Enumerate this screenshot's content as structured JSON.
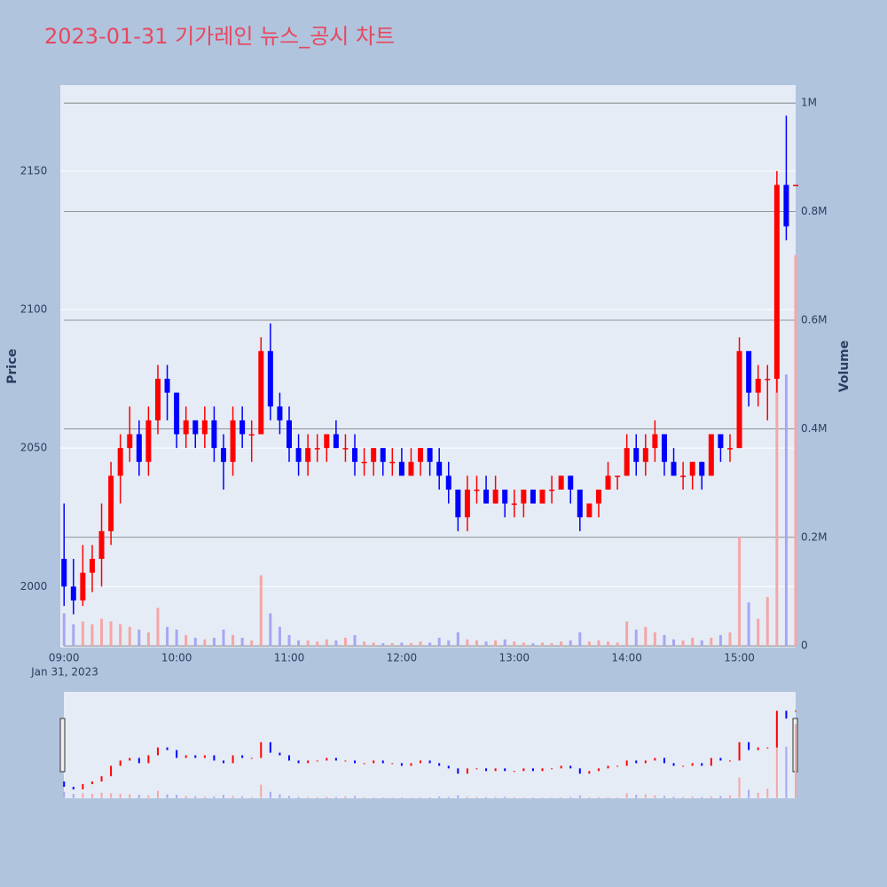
{
  "chart_data": {
    "type": "candlestick",
    "title": "2023-01-31 기가레인 뉴스_공시 차트",
    "y_label": "Price",
    "y2_label": "Volume",
    "x_date_label": "Jan 31, 2023",
    "increasing_color": "#ff0000",
    "decreasing_color": "#0000ff",
    "volume_increasing_color": "#f4a6a6",
    "volume_decreasing_color": "#a6a6f4",
    "x": [
      "09:00",
      "09:05",
      "09:10",
      "09:15",
      "09:20",
      "09:25",
      "09:30",
      "09:35",
      "09:40",
      "09:45",
      "09:50",
      "09:55",
      "10:00",
      "10:05",
      "10:10",
      "10:15",
      "10:20",
      "10:25",
      "10:30",
      "10:35",
      "10:40",
      "10:45",
      "10:50",
      "10:55",
      "11:00",
      "11:05",
      "11:10",
      "11:15",
      "11:20",
      "11:25",
      "11:30",
      "11:35",
      "11:40",
      "11:45",
      "11:50",
      "11:55",
      "12:00",
      "12:05",
      "12:10",
      "12:15",
      "12:20",
      "12:25",
      "12:30",
      "12:35",
      "12:40",
      "12:45",
      "12:50",
      "12:55",
      "13:00",
      "13:05",
      "13:10",
      "13:15",
      "13:20",
      "13:25",
      "13:30",
      "13:35",
      "13:40",
      "13:45",
      "13:50",
      "13:55",
      "14:00",
      "14:05",
      "14:10",
      "14:15",
      "14:20",
      "14:25",
      "14:30",
      "14:35",
      "14:40",
      "14:45",
      "14:50",
      "14:55",
      "15:00",
      "15:05",
      "15:10",
      "15:15",
      "15:20",
      "15:25",
      "15:30"
    ],
    "open": [
      2010,
      2000,
      1995,
      2005,
      2010,
      2020,
      2040,
      2050,
      2055,
      2045,
      2060,
      2075,
      2070,
      2055,
      2060,
      2055,
      2060,
      2050,
      2045,
      2060,
      2055,
      2055,
      2085,
      2065,
      2060,
      2050,
      2045,
      2050,
      2050,
      2055,
      2050,
      2050,
      2045,
      2045,
      2050,
      2045,
      2045,
      2040,
      2045,
      2050,
      2045,
      2040,
      2035,
      2025,
      2035,
      2035,
      2030,
      2035,
      2030,
      2030,
      2035,
      2030,
      2035,
      2035,
      2040,
      2035,
      2025,
      2030,
      2035,
      2040,
      2040,
      2050,
      2045,
      2050,
      2055,
      2045,
      2040,
      2040,
      2045,
      2040,
      2055,
      2050,
      2050,
      2085,
      2070,
      2075,
      2075,
      2145,
      2145
    ],
    "high": [
      2030,
      2010,
      2015,
      2015,
      2030,
      2045,
      2055,
      2065,
      2060,
      2065,
      2080,
      2080,
      2070,
      2065,
      2060,
      2065,
      2065,
      2055,
      2065,
      2065,
      2060,
      2090,
      2095,
      2070,
      2065,
      2055,
      2055,
      2055,
      2055,
      2060,
      2055,
      2055,
      2050,
      2050,
      2050,
      2050,
      2050,
      2050,
      2050,
      2050,
      2050,
      2045,
      2035,
      2040,
      2040,
      2040,
      2040,
      2035,
      2035,
      2035,
      2035,
      2035,
      2040,
      2040,
      2040,
      2035,
      2030,
      2035,
      2045,
      2040,
      2055,
      2055,
      2055,
      2060,
      2055,
      2050,
      2045,
      2045,
      2045,
      2055,
      2055,
      2055,
      2090,
      2085,
      2080,
      2080,
      2150,
      2170,
      2145
    ],
    "low": [
      1993,
      1990,
      1993,
      1998,
      2000,
      2015,
      2030,
      2045,
      2040,
      2040,
      2055,
      2060,
      2050,
      2050,
      2050,
      2050,
      2045,
      2035,
      2040,
      2050,
      2045,
      2055,
      2060,
      2055,
      2045,
      2040,
      2040,
      2045,
      2045,
      2050,
      2045,
      2040,
      2040,
      2040,
      2040,
      2040,
      2040,
      2040,
      2040,
      2040,
      2035,
      2030,
      2020,
      2020,
      2030,
      2030,
      2030,
      2025,
      2025,
      2025,
      2030,
      2030,
      2030,
      2035,
      2030,
      2020,
      2025,
      2025,
      2035,
      2035,
      2040,
      2040,
      2040,
      2045,
      2040,
      2040,
      2035,
      2035,
      2035,
      2040,
      2045,
      2045,
      2050,
      2065,
      2065,
      2060,
      2070,
      2125,
      2145
    ],
    "close": [
      2000,
      1995,
      2005,
      2010,
      2020,
      2040,
      2050,
      2055,
      2045,
      2060,
      2075,
      2070,
      2055,
      2060,
      2055,
      2060,
      2050,
      2045,
      2060,
      2055,
      2055,
      2085,
      2065,
      2060,
      2050,
      2045,
      2050,
      2050,
      2055,
      2050,
      2050,
      2045,
      2045,
      2050,
      2045,
      2045,
      2040,
      2045,
      2050,
      2045,
      2040,
      2035,
      2025,
      2035,
      2035,
      2030,
      2035,
      2030,
      2030,
      2035,
      2030,
      2035,
      2035,
      2040,
      2035,
      2025,
      2030,
      2035,
      2040,
      2040,
      2050,
      2045,
      2050,
      2055,
      2045,
      2040,
      2040,
      2045,
      2040,
      2055,
      2050,
      2050,
      2085,
      2070,
      2075,
      2075,
      2145,
      2130,
      2145
    ],
    "volume": [
      60000,
      40000,
      45000,
      40000,
      50000,
      45000,
      40000,
      35000,
      30000,
      25000,
      70000,
      35000,
      30000,
      20000,
      15000,
      12000,
      15000,
      30000,
      20000,
      15000,
      10000,
      130000,
      60000,
      35000,
      20000,
      10000,
      10000,
      8000,
      12000,
      10000,
      15000,
      20000,
      8000,
      6000,
      5000,
      5000,
      6000,
      5000,
      8000,
      6000,
      15000,
      10000,
      25000,
      12000,
      10000,
      8000,
      10000,
      12000,
      8000,
      6000,
      5000,
      6000,
      5000,
      8000,
      10000,
      25000,
      8000,
      10000,
      8000,
      6000,
      45000,
      30000,
      35000,
      25000,
      20000,
      12000,
      10000,
      15000,
      10000,
      15000,
      20000,
      25000,
      200000,
      80000,
      50000,
      90000,
      780000,
      500000,
      720000
    ],
    "xlim": [
      "08:58",
      "15:30"
    ],
    "xticks": [
      "09:00",
      "10:00",
      "11:00",
      "12:00",
      "13:00",
      "14:00",
      "15:00"
    ],
    "ylim": [
      1978,
      2181
    ],
    "yticks": [
      2000,
      2050,
      2100,
      2150
    ],
    "y2lim": [
      -3000,
      1033000
    ],
    "y2ticks": [
      0,
      {
        "value": 200000,
        "label": "0.2M"
      },
      {
        "value": 400000,
        "label": "0.4M"
      },
      {
        "value": 600000,
        "label": "0.6M"
      },
      {
        "value": 800000,
        "label": "0.8M"
      },
      {
        "value": 1000000,
        "label": "1M"
      }
    ],
    "grid": true,
    "rangeslider": true
  }
}
